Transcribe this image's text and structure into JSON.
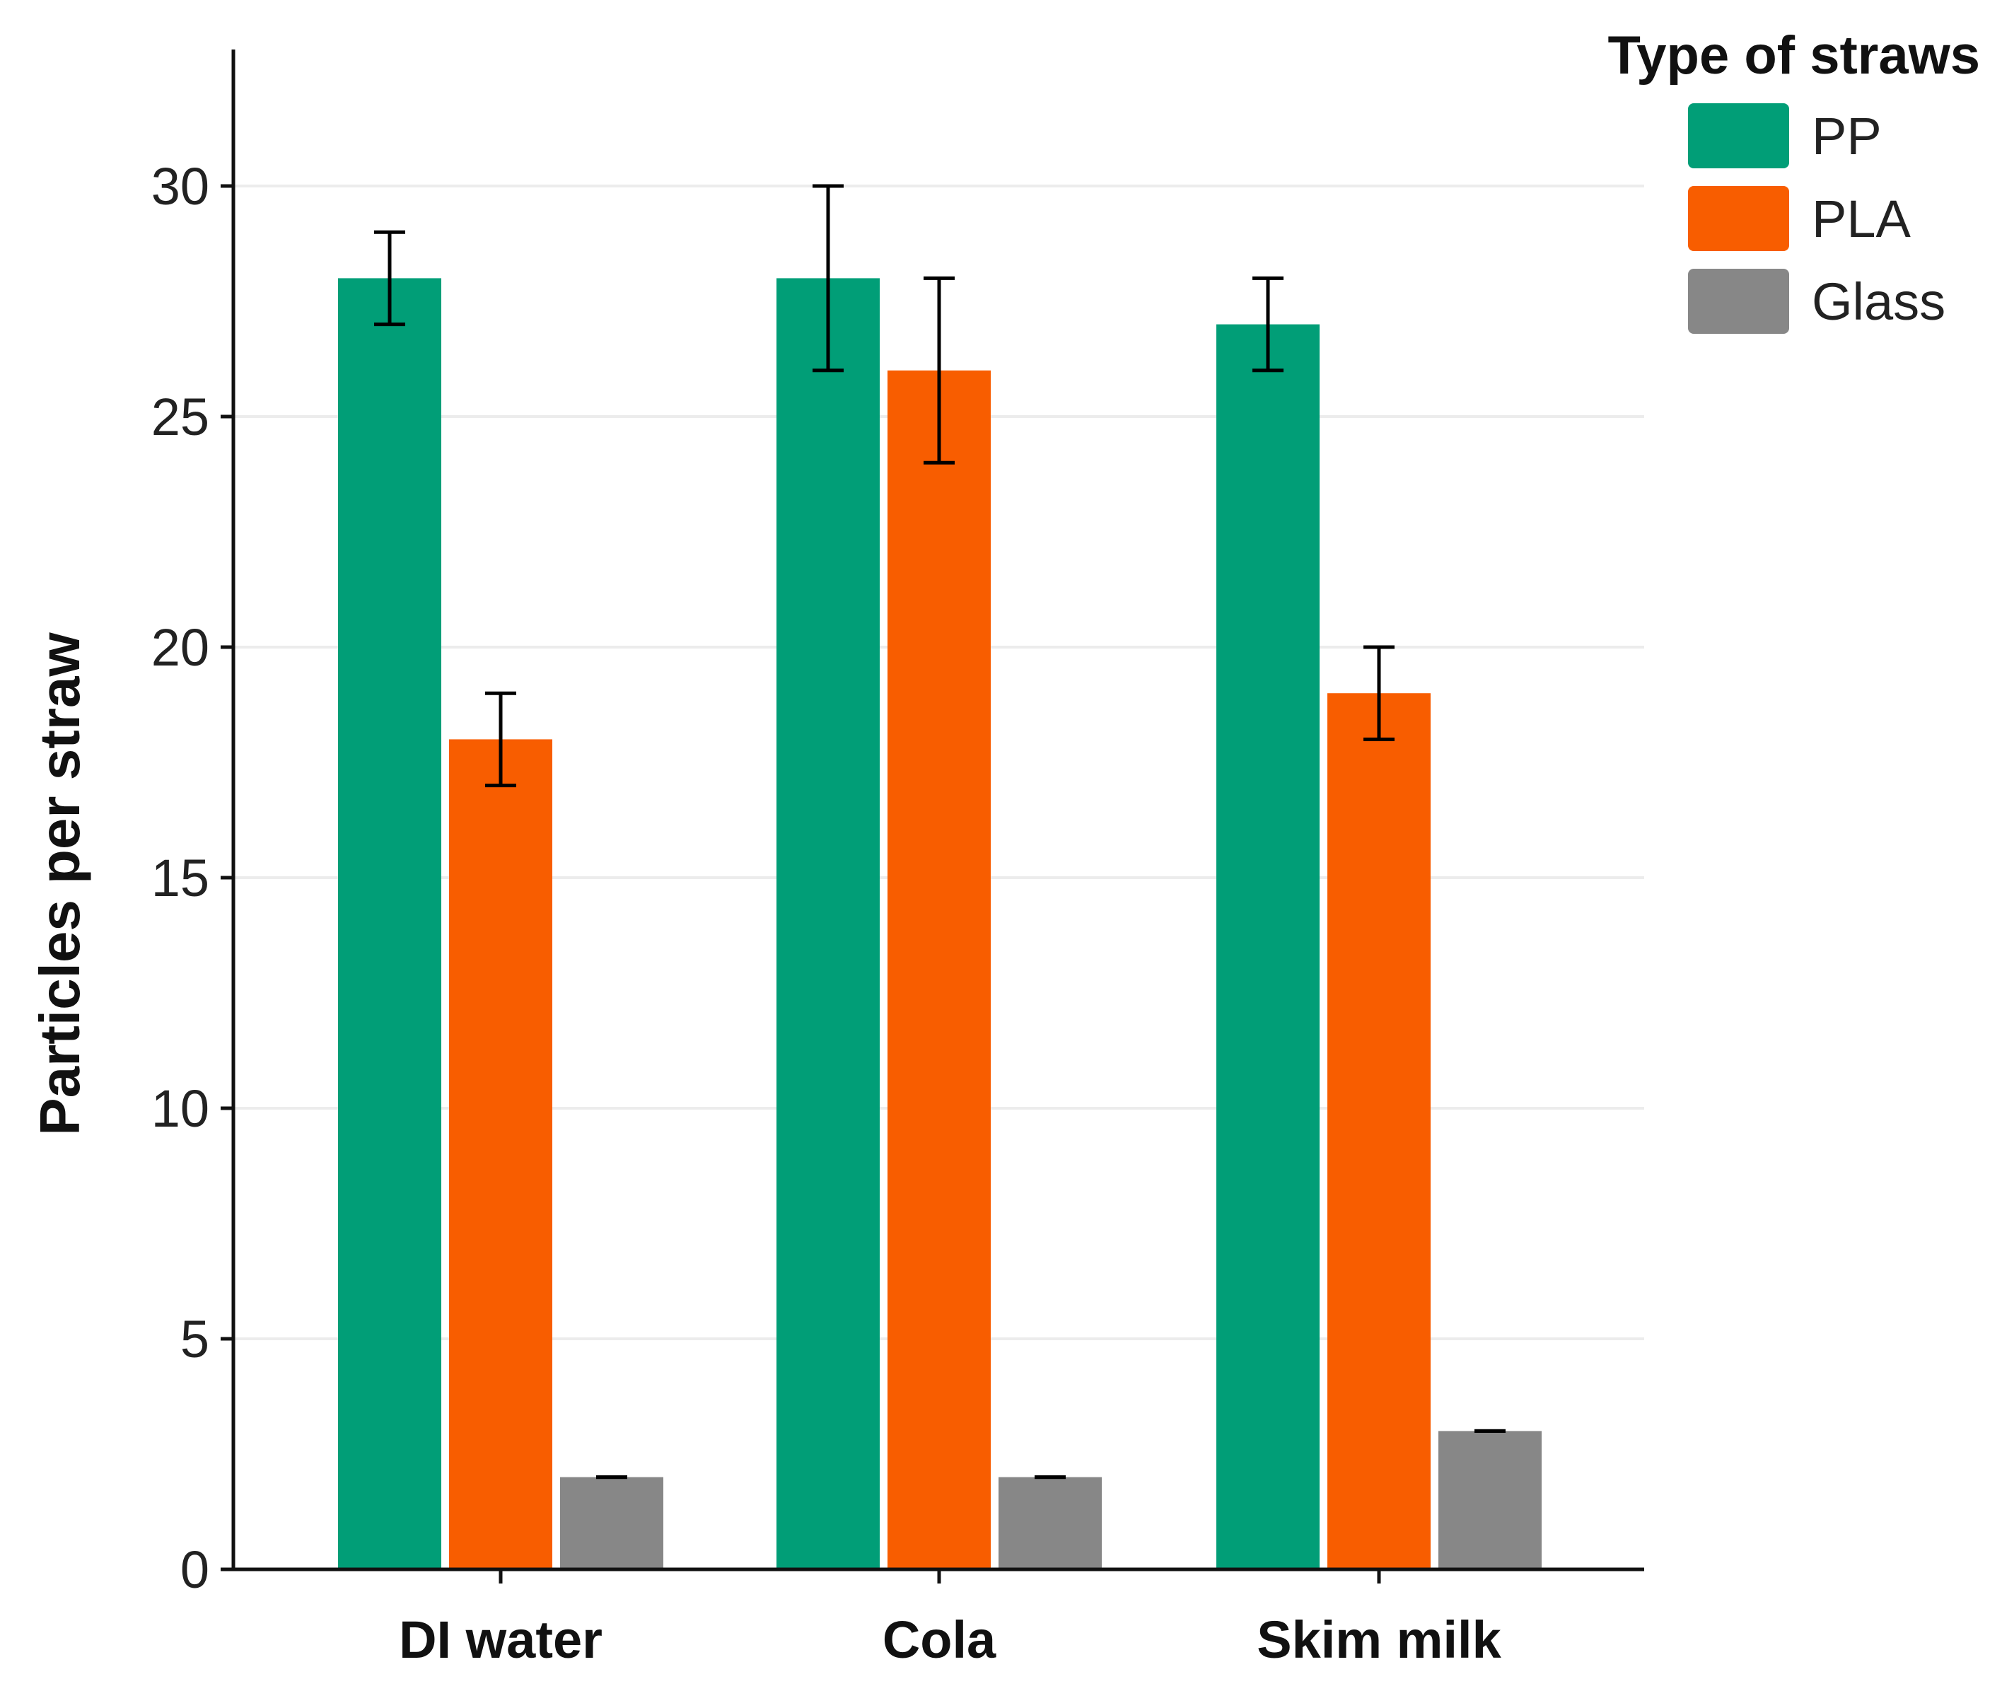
{
  "chart_data": {
    "type": "bar",
    "title": "",
    "xlabel": "",
    "ylabel": "Particles per straw",
    "ylim": [
      0,
      32.5
    ],
    "yticks": [
      0,
      5,
      10,
      15,
      20,
      25,
      30
    ],
    "grid": "horizontal",
    "legend_position": "top-right",
    "legend_title": "Type of straws",
    "categories": [
      "DI water",
      "Cola",
      "Skim milk"
    ],
    "series": [
      {
        "name": "PP",
        "color": "#019e77",
        "values": [
          28,
          28,
          27
        ],
        "errors": [
          [
            27,
            29
          ],
          [
            26,
            30
          ],
          [
            26,
            28
          ]
        ]
      },
      {
        "name": "PLA",
        "color": "#f85d00",
        "values": [
          18,
          26,
          19
        ],
        "errors": [
          [
            17,
            19
          ],
          [
            24,
            28
          ],
          [
            18,
            20
          ]
        ]
      },
      {
        "name": "Glass",
        "color": "#878787",
        "values": [
          2,
          2,
          3
        ],
        "errors": [
          [
            2,
            2
          ],
          [
            2,
            2
          ],
          [
            3,
            3
          ]
        ]
      }
    ]
  }
}
